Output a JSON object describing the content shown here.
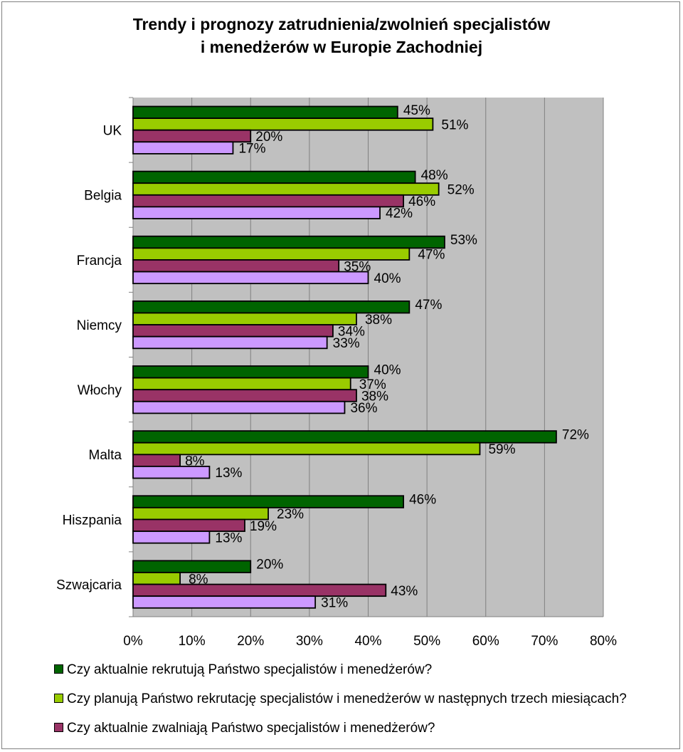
{
  "chart_data": {
    "type": "bar",
    "orientation": "horizontal",
    "title_lines": [
      "Trendy i prognozy zatrudnienia/zwolnień specjalistów",
      "i menedżerów w Europie Zachodniej"
    ],
    "categories": [
      "UK",
      "Belgia",
      "Francja",
      "Niemcy",
      "Włochy",
      "Malta",
      "Hiszpania",
      "Szwajcaria"
    ],
    "series": [
      {
        "name": "Czy aktualnie rekrutują Państwo specjalistów i menedżerów?",
        "color": "#006400",
        "values": [
          45,
          48,
          53,
          47,
          40,
          72,
          46,
          20
        ]
      },
      {
        "name": "Czy planują Państwo rekrutację specjalistów i menedżerów w następnych trzech miesiącach?",
        "color": "#99CC00",
        "values": [
          51,
          52,
          47,
          38,
          37,
          59,
          23,
          8
        ]
      },
      {
        "name": "Czy aktualnie zwalniają Państwo specjalistów i menedżerów?",
        "color": "#993366",
        "values": [
          20,
          46,
          35,
          34,
          38,
          8,
          19,
          43
        ]
      },
      {
        "name": "",
        "color": "#CC99FF",
        "values": [
          17,
          42,
          40,
          33,
          36,
          13,
          13,
          31
        ]
      }
    ],
    "xlim": [
      0,
      80
    ],
    "xticks": [
      "0%",
      "10%",
      "20%",
      "30%",
      "40%",
      "50%",
      "60%",
      "70%",
      "80%"
    ],
    "value_suffix": "%",
    "grid": true,
    "plot_background": "#C0C0C0",
    "legend_position": "bottom"
  }
}
